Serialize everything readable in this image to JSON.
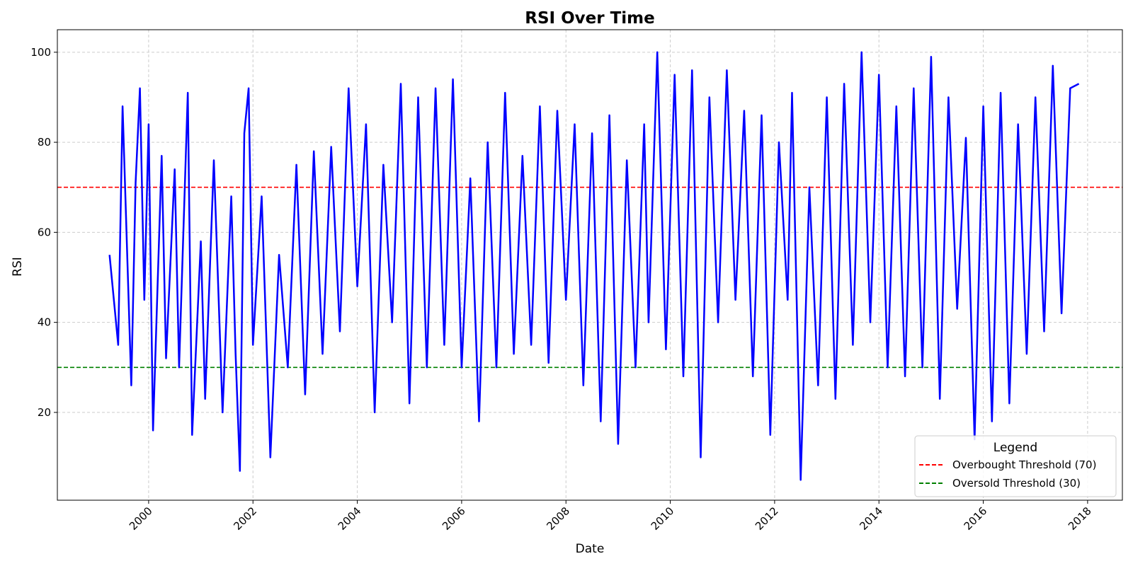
{
  "chart_data": {
    "type": "line",
    "title": "RSI Over Time",
    "xlabel": "Date",
    "ylabel": "RSI",
    "xlim": [
      "1998-04-01",
      "2018-09-01"
    ],
    "ylim": [
      0.5,
      105
    ],
    "x_ticks": [
      "2000",
      "2002",
      "2004",
      "2006",
      "2008",
      "2010",
      "2012",
      "2014",
      "2016",
      "2018"
    ],
    "y_ticks": [
      20,
      40,
      60,
      80,
      100
    ],
    "grid": true,
    "legend": {
      "title": "Legend",
      "placement": "lower-right"
    },
    "colors": {
      "rsi": "#0000ff",
      "overbought": "#ff0000",
      "oversold": "#008000",
      "grid": "#cccccc"
    },
    "thresholds": [
      {
        "name": "Overbought Threshold (70)",
        "value": 70,
        "color": "#ff0000"
      },
      {
        "name": "Oversold Threshold (30)",
        "value": 30,
        "color": "#008000"
      }
    ],
    "series": [
      {
        "x": [
          "1999-04",
          "1999-06",
          "1999-07",
          "1999-09",
          "1999-10",
          "1999-11",
          "1999-12",
          "2000-01",
          "2000-02",
          "2000-04",
          "2000-05",
          "2000-07",
          "2000-08",
          "2000-10",
          "2000-11",
          "2001-01",
          "2001-02",
          "2001-04",
          "2001-06",
          "2001-08",
          "2001-09",
          "2001-10",
          "2001-11",
          "2001-12",
          "2002-01",
          "2002-03",
          "2002-05",
          "2002-07",
          "2002-09",
          "2002-11",
          "2003-01",
          "2003-03",
          "2003-05",
          "2003-07",
          "2003-09",
          "2003-11",
          "2004-01",
          "2004-03",
          "2004-05",
          "2004-07",
          "2004-09",
          "2004-11",
          "2005-01",
          "2005-03",
          "2005-05",
          "2005-07",
          "2005-09",
          "2005-11",
          "2006-01",
          "2006-03",
          "2006-05",
          "2006-07",
          "2006-09",
          "2006-11",
          "2007-01",
          "2007-03",
          "2007-05",
          "2007-07",
          "2007-09",
          "2007-11",
          "2008-01",
          "2008-03",
          "2008-05",
          "2008-07",
          "2008-09",
          "2008-11",
          "2009-01",
          "2009-03",
          "2009-05",
          "2009-07",
          "2009-08",
          "2009-10",
          "2009-12",
          "2010-02",
          "2010-04",
          "2010-06",
          "2010-08",
          "2010-10",
          "2010-12",
          "2011-02",
          "2011-04",
          "2011-06",
          "2011-08",
          "2011-10",
          "2011-12",
          "2012-02",
          "2012-04",
          "2012-05",
          "2012-07",
          "2012-09",
          "2012-11",
          "2013-01",
          "2013-03",
          "2013-05",
          "2013-07",
          "2013-09",
          "2013-11",
          "2014-01",
          "2014-03",
          "2014-05",
          "2014-07",
          "2014-09",
          "2014-11",
          "2015-01",
          "2015-03",
          "2015-05",
          "2015-07",
          "2015-09",
          "2015-11",
          "2016-01",
          "2016-03",
          "2016-05",
          "2016-07",
          "2016-09",
          "2016-11",
          "2017-01",
          "2017-03",
          "2017-05",
          "2017-07",
          "2017-09",
          "2017-11"
        ],
        "values": [
          55,
          35,
          88,
          26,
          71,
          92,
          45,
          84,
          16,
          77,
          32,
          74,
          30,
          91,
          15,
          58,
          23,
          76,
          20,
          68,
          33,
          7,
          82,
          92,
          35,
          68,
          10,
          55,
          30,
          75,
          24,
          78,
          33,
          79,
          38,
          92,
          48,
          84,
          20,
          75,
          40,
          93,
          22,
          90,
          30,
          92,
          35,
          94,
          30,
          72,
          18,
          80,
          30,
          91,
          33,
          77,
          35,
          88,
          31,
          87,
          45,
          84,
          26,
          82,
          18,
          86,
          13,
          76,
          30,
          84,
          40,
          100,
          34,
          95,
          28,
          96,
          10,
          90,
          40,
          96,
          45,
          87,
          28,
          86,
          15,
          80,
          45,
          91,
          5,
          70,
          26,
          90,
          23,
          93,
          35,
          100,
          40,
          95,
          30,
          88,
          28,
          92,
          30,
          99,
          23,
          90,
          43,
          81,
          14,
          88,
          18,
          91,
          22,
          84,
          33,
          90,
          38,
          97,
          42,
          92,
          93
        ]
      }
    ]
  }
}
